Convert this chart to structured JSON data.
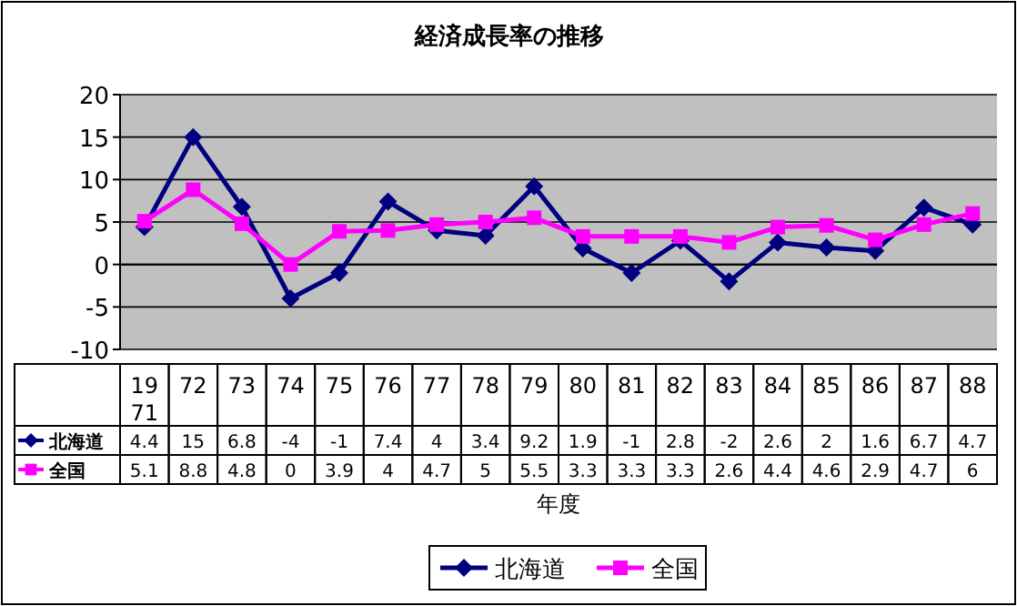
{
  "chart_data": {
    "type": "line",
    "title": "経済成長率の推移",
    "xlabel": "年度",
    "categories": [
      "1971",
      "72",
      "73",
      "74",
      "75",
      "76",
      "77",
      "78",
      "79",
      "80",
      "81",
      "82",
      "83",
      "84",
      "85",
      "86",
      "87",
      "88"
    ],
    "series": [
      {
        "name": "北海道",
        "color": "#000080",
        "marker": "diamond",
        "values": [
          4.4,
          15,
          6.8,
          -4,
          -1,
          7.4,
          4,
          3.4,
          9.2,
          1.9,
          -1,
          2.8,
          -2,
          2.6,
          2,
          1.6,
          6.7,
          4.7
        ]
      },
      {
        "name": "全国",
        "color": "#ff00ff",
        "marker": "square",
        "values": [
          5.1,
          8.8,
          4.8,
          0,
          3.9,
          4,
          4.7,
          5,
          5.5,
          3.3,
          3.3,
          3.3,
          2.6,
          4.4,
          4.6,
          2.9,
          4.7,
          6
        ]
      }
    ],
    "ylim": [
      -10,
      20
    ],
    "yticks": [
      -10,
      -5,
      0,
      5,
      10,
      15,
      20
    ],
    "grid": "y",
    "legend": "bottom",
    "data_labels": true,
    "line_style": "solid"
  }
}
